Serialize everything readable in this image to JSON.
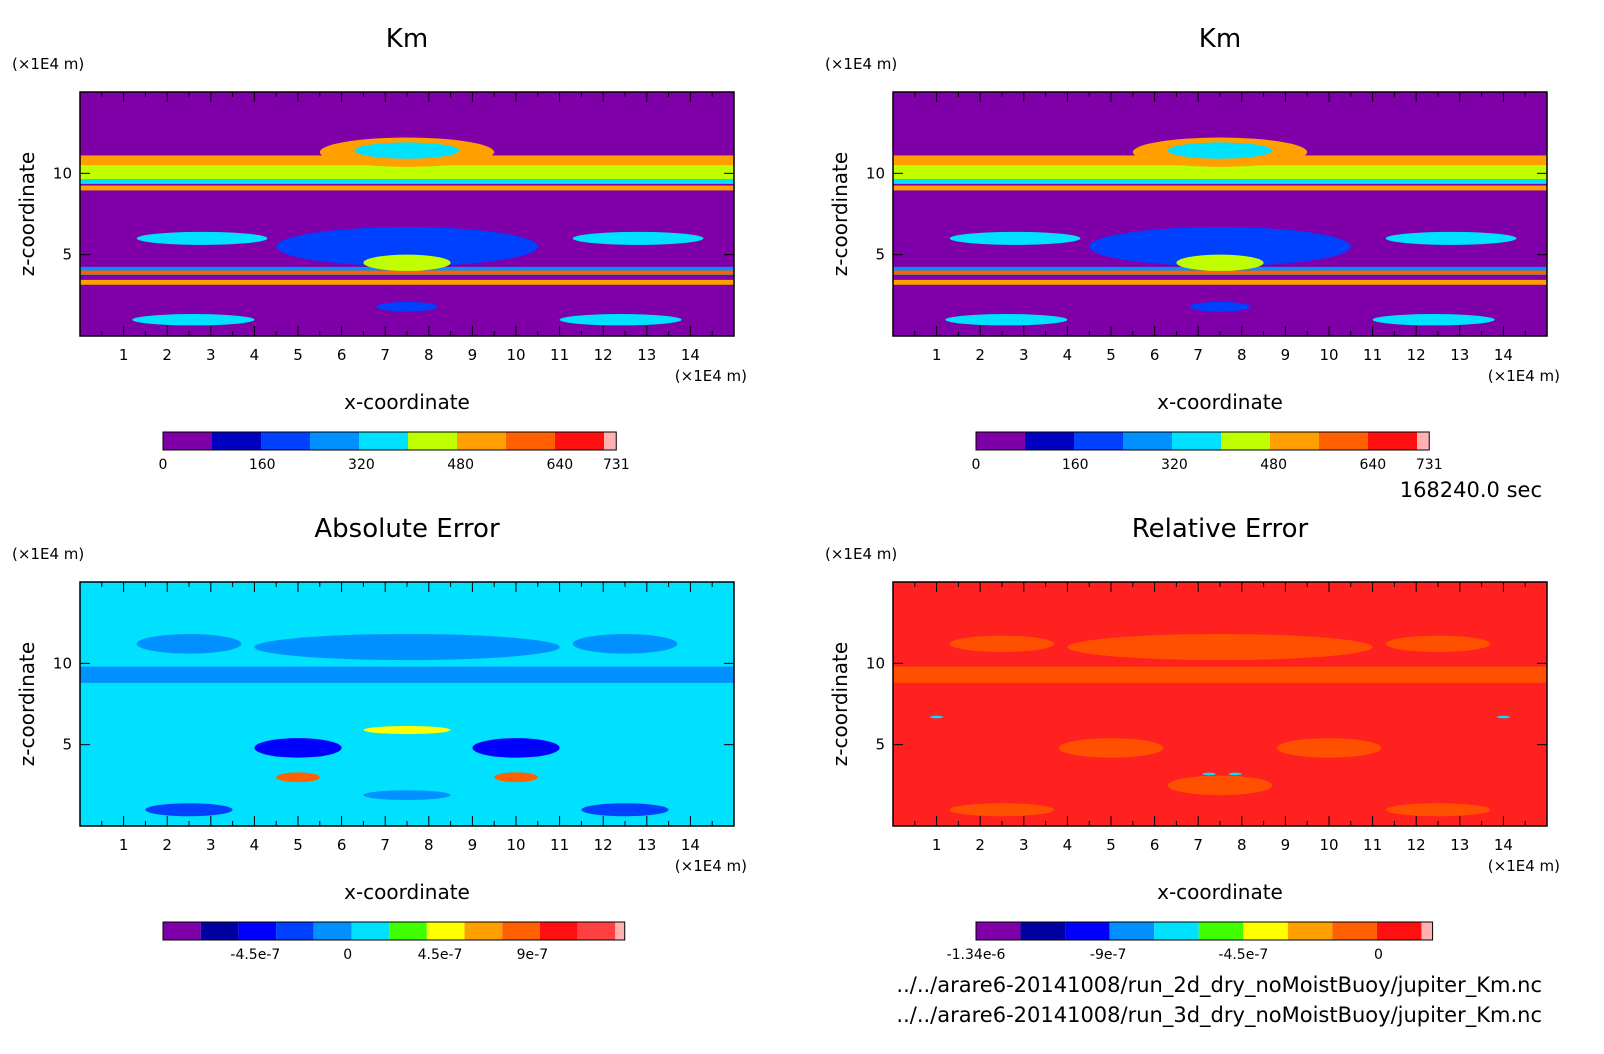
{
  "time_label": "168240.0 sec",
  "files": [
    "../../arare6-20141008/run_2d_dry_noMoistBuoy/jupiter_Km.nc",
    "../../arare6-20141008/run_3d_dry_noMoistBuoy/jupiter_Km.nc"
  ],
  "chart_data": [
    {
      "type": "heatmap",
      "title": "Km",
      "xlabel": "x-coordinate",
      "ylabel": "z-coordinate",
      "x_unit": "(×1E4 m)",
      "y_unit": "(×1E4 m)",
      "xlim": [
        0,
        15
      ],
      "ylim": [
        0,
        15
      ],
      "x_ticks": [
        "1",
        "2",
        "3",
        "4",
        "5",
        "6",
        "7",
        "8",
        "9",
        "10",
        "11",
        "12",
        "13",
        "14"
      ],
      "y_ticks": [
        "5",
        "10"
      ],
      "base_color": "#7f00a8",
      "colorbar": {
        "colors": [
          "#7f00a8",
          "#0000c0",
          "#0040ff",
          "#0090ff",
          "#00e0ff",
          "#c0ff00",
          "#ffa000",
          "#ff6000",
          "#ff1010",
          "#ffb0b0"
        ],
        "tick_labels": [
          "0",
          "160",
          "320",
          "480",
          "640",
          "731"
        ],
        "tick_values": [
          0,
          160,
          320,
          480,
          640,
          731
        ],
        "range": [
          0,
          731
        ]
      },
      "bands": [
        {
          "z": 10.2,
          "h": 1.4,
          "color": "#c0ff00"
        },
        {
          "z": 10.8,
          "h": 0.6,
          "color": "#ffa000"
        },
        {
          "z": 9.5,
          "h": 0.3,
          "color": "#00e0ff"
        },
        {
          "z": 9.1,
          "h": 0.3,
          "color": "#ffa000"
        },
        {
          "z": 4.0,
          "h": 0.5,
          "color": "#0090ff"
        },
        {
          "z": 3.9,
          "h": 0.25,
          "color": "#ff6000"
        },
        {
          "z": 3.3,
          "h": 0.3,
          "color": "#ffa000"
        }
      ],
      "blobs": [
        {
          "x": 7.5,
          "z": 11.3,
          "rx": 2.0,
          "rz": 0.9,
          "color": "#ffa000"
        },
        {
          "x": 7.5,
          "z": 11.4,
          "rx": 1.2,
          "rz": 0.5,
          "color": "#00e0ff"
        },
        {
          "x": 2.8,
          "z": 6.0,
          "rx": 1.5,
          "rz": 0.4,
          "color": "#00e0ff"
        },
        {
          "x": 12.8,
          "z": 6.0,
          "rx": 1.5,
          "rz": 0.4,
          "color": "#00e0ff"
        },
        {
          "x": 7.5,
          "z": 5.5,
          "rx": 3.0,
          "rz": 1.2,
          "color": "#0040ff"
        },
        {
          "x": 7.5,
          "z": 4.5,
          "rx": 1.0,
          "rz": 0.5,
          "color": "#c0ff00"
        },
        {
          "x": 7.5,
          "z": 1.8,
          "rx": 0.7,
          "rz": 0.3,
          "color": "#0040ff"
        },
        {
          "x": 2.6,
          "z": 1.0,
          "rx": 1.4,
          "rz": 0.35,
          "color": "#00e0ff"
        },
        {
          "x": 12.4,
          "z": 1.0,
          "rx": 1.4,
          "rz": 0.35,
          "color": "#00e0ff"
        }
      ]
    },
    {
      "type": "heatmap",
      "title": "Km",
      "xlabel": "x-coordinate",
      "ylabel": "z-coordinate",
      "x_unit": "(×1E4 m)",
      "y_unit": "(×1E4 m)",
      "xlim": [
        0,
        15
      ],
      "ylim": [
        0,
        15
      ],
      "x_ticks": [
        "1",
        "2",
        "3",
        "4",
        "5",
        "6",
        "7",
        "8",
        "9",
        "10",
        "11",
        "12",
        "13",
        "14"
      ],
      "y_ticks": [
        "5",
        "10"
      ],
      "base_color": "#7f00a8",
      "colorbar": {
        "colors": [
          "#7f00a8",
          "#0000c0",
          "#0040ff",
          "#0090ff",
          "#00e0ff",
          "#c0ff00",
          "#ffa000",
          "#ff6000",
          "#ff1010",
          "#ffb0b0"
        ],
        "tick_labels": [
          "0",
          "160",
          "320",
          "480",
          "640",
          "731"
        ],
        "tick_values": [
          0,
          160,
          320,
          480,
          640,
          731
        ],
        "range": [
          0,
          731
        ]
      },
      "bands": [
        {
          "z": 10.2,
          "h": 1.4,
          "color": "#c0ff00"
        },
        {
          "z": 10.8,
          "h": 0.6,
          "color": "#ffa000"
        },
        {
          "z": 9.5,
          "h": 0.3,
          "color": "#00e0ff"
        },
        {
          "z": 9.1,
          "h": 0.3,
          "color": "#ffa000"
        },
        {
          "z": 4.0,
          "h": 0.5,
          "color": "#0090ff"
        },
        {
          "z": 3.9,
          "h": 0.25,
          "color": "#ff6000"
        },
        {
          "z": 3.3,
          "h": 0.3,
          "color": "#ffa000"
        }
      ],
      "blobs": [
        {
          "x": 7.5,
          "z": 11.3,
          "rx": 2.0,
          "rz": 0.9,
          "color": "#ffa000"
        },
        {
          "x": 7.5,
          "z": 11.4,
          "rx": 1.2,
          "rz": 0.5,
          "color": "#00e0ff"
        },
        {
          "x": 2.8,
          "z": 6.0,
          "rx": 1.5,
          "rz": 0.4,
          "color": "#00e0ff"
        },
        {
          "x": 12.8,
          "z": 6.0,
          "rx": 1.5,
          "rz": 0.4,
          "color": "#00e0ff"
        },
        {
          "x": 7.5,
          "z": 5.5,
          "rx": 3.0,
          "rz": 1.2,
          "color": "#0040ff"
        },
        {
          "x": 7.5,
          "z": 4.5,
          "rx": 1.0,
          "rz": 0.5,
          "color": "#c0ff00"
        },
        {
          "x": 7.5,
          "z": 1.8,
          "rx": 0.7,
          "rz": 0.3,
          "color": "#0040ff"
        },
        {
          "x": 2.6,
          "z": 1.0,
          "rx": 1.4,
          "rz": 0.35,
          "color": "#00e0ff"
        },
        {
          "x": 12.4,
          "z": 1.0,
          "rx": 1.4,
          "rz": 0.35,
          "color": "#00e0ff"
        }
      ]
    },
    {
      "type": "heatmap",
      "title": "Absolute Error",
      "xlabel": "x-coordinate",
      "ylabel": "z-coordinate",
      "x_unit": "(×1E4 m)",
      "y_unit": "(×1E4 m)",
      "xlim": [
        0,
        15
      ],
      "ylim": [
        0,
        15
      ],
      "x_ticks": [
        "1",
        "2",
        "3",
        "4",
        "5",
        "6",
        "7",
        "8",
        "9",
        "10",
        "11",
        "12",
        "13",
        "14"
      ],
      "y_ticks": [
        "5",
        "10"
      ],
      "base_color": "#00e0ff",
      "colorbar": {
        "colors": [
          "#7f00a8",
          "#0000a0",
          "#0000ff",
          "#0040ff",
          "#0090ff",
          "#00e0ff",
          "#40ff00",
          "#ffff00",
          "#ffa000",
          "#ff6000",
          "#ff1010",
          "#ff4040",
          "#ffb0b0"
        ],
        "tick_labels": [
          "-4.5e-7",
          "0",
          "4.5e-7",
          "9e-7"
        ],
        "tick_values": [
          -4.5e-07,
          0,
          4.5e-07,
          9e-07
        ],
        "range": [
          -9e-07,
          1.35e-06
        ]
      },
      "bands": [
        {
          "z": 9.3,
          "h": 1.0,
          "color": "#0090ff"
        }
      ],
      "blobs": [
        {
          "x": 7.5,
          "z": 11.0,
          "rx": 3.5,
          "rz": 0.8,
          "color": "#0090ff"
        },
        {
          "x": 2.5,
          "z": 11.2,
          "rx": 1.2,
          "rz": 0.6,
          "color": "#0090ff"
        },
        {
          "x": 12.5,
          "z": 11.2,
          "rx": 1.2,
          "rz": 0.6,
          "color": "#0090ff"
        },
        {
          "x": 5.0,
          "z": 4.8,
          "rx": 1.0,
          "rz": 0.6,
          "color": "#0000ff"
        },
        {
          "x": 10.0,
          "z": 4.8,
          "rx": 1.0,
          "rz": 0.6,
          "color": "#0000ff"
        },
        {
          "x": 7.5,
          "z": 5.9,
          "rx": 1.0,
          "rz": 0.25,
          "color": "#ffff00"
        },
        {
          "x": 5.0,
          "z": 3.0,
          "rx": 0.5,
          "rz": 0.3,
          "color": "#ff6000"
        },
        {
          "x": 10.0,
          "z": 3.0,
          "rx": 0.5,
          "rz": 0.3,
          "color": "#ff6000"
        },
        {
          "x": 2.5,
          "z": 1.0,
          "rx": 1.0,
          "rz": 0.4,
          "color": "#0040ff"
        },
        {
          "x": 12.5,
          "z": 1.0,
          "rx": 1.0,
          "rz": 0.4,
          "color": "#0040ff"
        },
        {
          "x": 7.5,
          "z": 1.9,
          "rx": 1.0,
          "rz": 0.3,
          "color": "#0090ff"
        }
      ]
    },
    {
      "type": "heatmap",
      "title": "Relative Error",
      "xlabel": "x-coordinate",
      "ylabel": "z-coordinate",
      "x_unit": "(×1E4 m)",
      "y_unit": "(×1E4 m)",
      "xlim": [
        0,
        15
      ],
      "ylim": [
        0,
        15
      ],
      "x_ticks": [
        "1",
        "2",
        "3",
        "4",
        "5",
        "6",
        "7",
        "8",
        "9",
        "10",
        "11",
        "12",
        "13",
        "14"
      ],
      "y_ticks": [
        "5",
        "10"
      ],
      "base_color": "#ff2020",
      "colorbar": {
        "colors": [
          "#7f00a8",
          "#0000a0",
          "#0000ff",
          "#0090ff",
          "#00e0ff",
          "#40ff00",
          "#ffff00",
          "#ffa000",
          "#ff6000",
          "#ff1010",
          "#ffb0b0"
        ],
        "tick_labels": [
          "-1.34e-6",
          "-9e-7",
          "-4.5e-7",
          "0"
        ],
        "tick_values": [
          -1.34e-06,
          -9e-07,
          -4.5e-07,
          0
        ],
        "range": [
          -1.34e-06,
          1.8e-07
        ]
      },
      "bands": [
        {
          "z": 9.3,
          "h": 1.0,
          "color": "#ff5000"
        }
      ],
      "blobs": [
        {
          "x": 7.5,
          "z": 11.0,
          "rx": 3.5,
          "rz": 0.8,
          "color": "#ff5000"
        },
        {
          "x": 2.5,
          "z": 11.2,
          "rx": 1.2,
          "rz": 0.5,
          "color": "#ff5000"
        },
        {
          "x": 12.5,
          "z": 11.2,
          "rx": 1.2,
          "rz": 0.5,
          "color": "#ff5000"
        },
        {
          "x": 5.0,
          "z": 4.8,
          "rx": 1.2,
          "rz": 0.6,
          "color": "#ff5000"
        },
        {
          "x": 10.0,
          "z": 4.8,
          "rx": 1.2,
          "rz": 0.6,
          "color": "#ff5000"
        },
        {
          "x": 7.5,
          "z": 2.5,
          "rx": 1.2,
          "rz": 0.6,
          "color": "#ff5000"
        },
        {
          "x": 2.5,
          "z": 1.0,
          "rx": 1.2,
          "rz": 0.4,
          "color": "#ff5000"
        },
        {
          "x": 12.5,
          "z": 1.0,
          "rx": 1.2,
          "rz": 0.4,
          "color": "#ff5000"
        },
        {
          "x": 1.0,
          "z": 6.7,
          "rx": 0.15,
          "rz": 0.08,
          "color": "#00e0ff"
        },
        {
          "x": 14.0,
          "z": 6.7,
          "rx": 0.15,
          "rz": 0.08,
          "color": "#00e0ff"
        },
        {
          "x": 7.25,
          "z": 3.2,
          "rx": 0.15,
          "rz": 0.08,
          "color": "#00e0ff"
        },
        {
          "x": 7.85,
          "z": 3.2,
          "rx": 0.15,
          "rz": 0.08,
          "color": "#00e0ff"
        }
      ]
    }
  ]
}
